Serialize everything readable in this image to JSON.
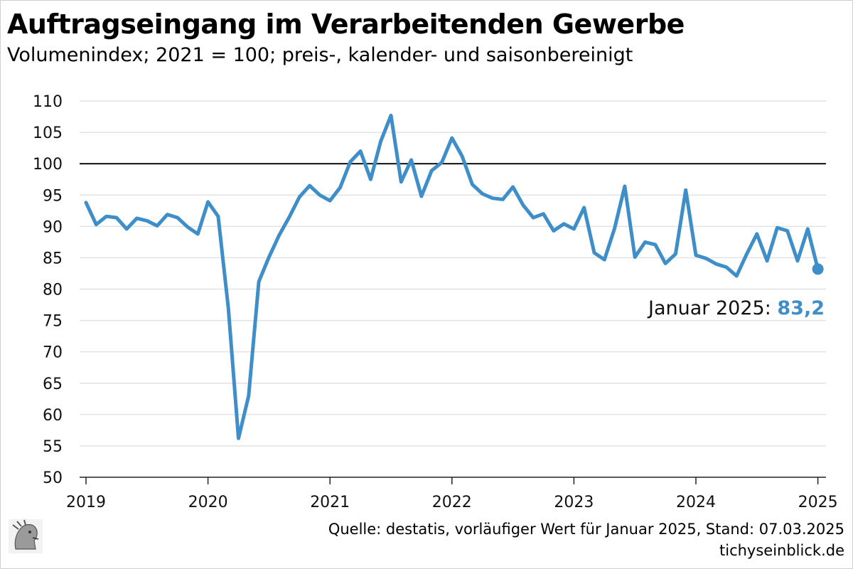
{
  "header": {
    "title": "Auftragseingang im Verarbeitenden Gewerbe",
    "subtitle": "Volumenindex; 2021 = 100; preis-, kalender- und saisonbereinigt"
  },
  "footer": {
    "source": "Quelle: destatis, vorläufiger Wert für Januar 2025, Stand: 07.03.2025",
    "site": "tichyseinblick.de"
  },
  "annotation": {
    "label": "Januar 2025: ",
    "value": "83,2"
  },
  "colors": {
    "line": "#3e8ec9",
    "grid": "#e2e2e2",
    "reference": "#000000"
  },
  "chart_data": {
    "type": "line",
    "title": "Auftragseingang im Verarbeitenden Gewerbe",
    "subtitle": "Volumenindex; 2021 = 100; preis-, kalender- und saisonbereinigt",
    "xlabel": "",
    "ylabel": "",
    "ylim": [
      50,
      110
    ],
    "yticks": [
      50,
      55,
      60,
      65,
      70,
      75,
      80,
      85,
      90,
      95,
      100,
      105,
      110
    ],
    "xticks": [
      "2019",
      "2020",
      "2021",
      "2022",
      "2023",
      "2024",
      "2025"
    ],
    "x_start": "2019-01",
    "x_frequency": "monthly",
    "reference_line": 100,
    "grid": "horizontal",
    "legend": "none",
    "series": [
      {
        "values": [
          93.8,
          90.3,
          91.6,
          91.4,
          89.6,
          91.3,
          90.9,
          90.1,
          91.9,
          91.4,
          89.9,
          88.8,
          93.9,
          91.6,
          77.0,
          56.2,
          63.0,
          81.2,
          85.1,
          88.6,
          91.5,
          94.7,
          96.5,
          95.0,
          94.1,
          96.2,
          100.3,
          102.0,
          97.5,
          103.6,
          107.7,
          97.1,
          100.6,
          94.8,
          98.9,
          100.2,
          104.1,
          101.2,
          96.7,
          95.2,
          94.5,
          94.3,
          96.3,
          93.4,
          91.4,
          92.0,
          89.3,
          90.4,
          89.6,
          93.0,
          85.8,
          84.7,
          89.7,
          96.4,
          85.1,
          87.5,
          87.1,
          84.1,
          85.6,
          95.8,
          85.4,
          84.9,
          84.0,
          83.5,
          82.1,
          85.6,
          88.8,
          84.5,
          89.8,
          89.3,
          84.5,
          89.6,
          83.2
        ]
      }
    ]
  }
}
